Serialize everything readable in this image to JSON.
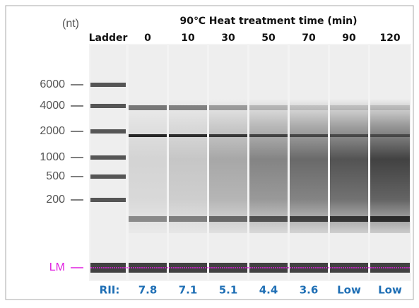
{
  "header": {
    "unit": "(nt)",
    "title": "90℃ Heat treatment time (min)"
  },
  "lanes": [
    "Ladder",
    "0",
    "10",
    "30",
    "50",
    "70",
    "90",
    "120"
  ],
  "size_markers": [
    "6000",
    "4000",
    "2000",
    "1000",
    "500",
    "200"
  ],
  "lower_marker": "LM",
  "rin": {
    "label": "RII:",
    "values": [
      "7.8",
      "7.1",
      "5.1",
      "4.4",
      "3.6",
      "Low",
      "Low"
    ]
  }
}
